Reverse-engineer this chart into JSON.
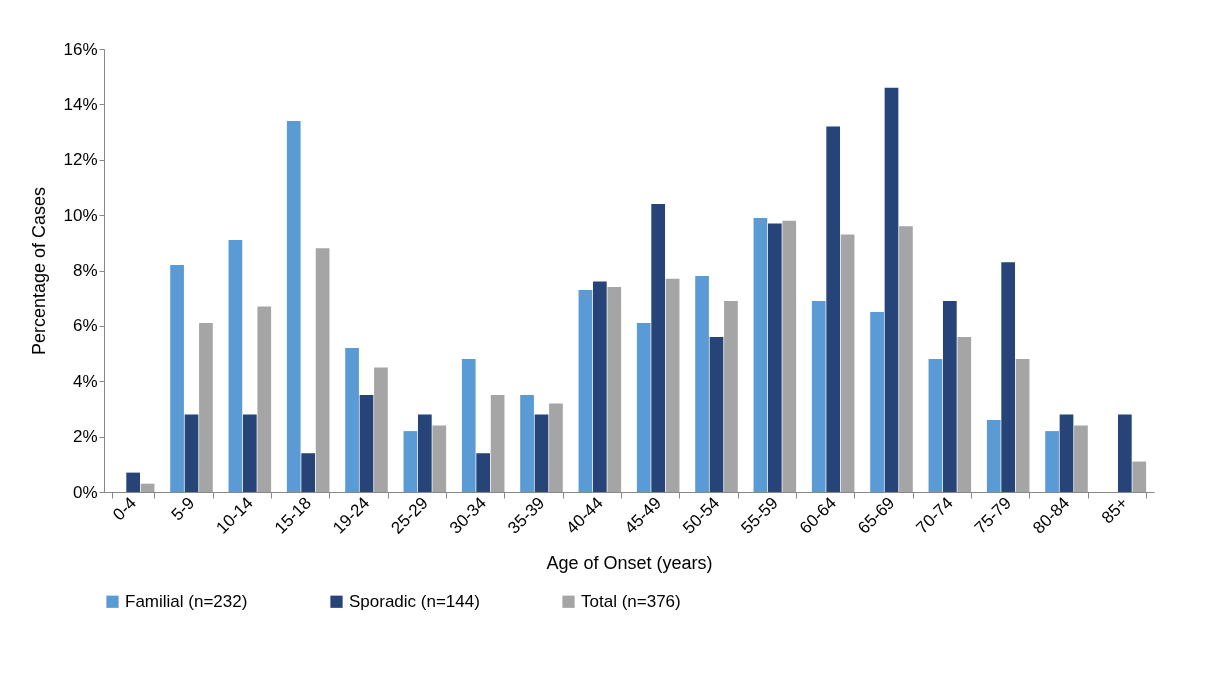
{
  "chart_data": {
    "type": "bar",
    "xlabel": "Age of Onset (years)",
    "ylabel": "Percentage of Cases",
    "categories": [
      "0-4",
      "5-9",
      "10-14",
      "15-18",
      "19-24",
      "25-29",
      "30-34",
      "35-39",
      "40-44",
      "45-49",
      "50-54",
      "55-59",
      "60-64",
      "65-69",
      "70-74",
      "75-79",
      "80-84",
      "85+"
    ],
    "series": [
      {
        "name": "Familial (n=232)",
        "color": "#5b9bd5",
        "values": [
          0,
          8.2,
          9.1,
          13.4,
          5.2,
          2.2,
          4.8,
          3.5,
          7.3,
          6.1,
          7.8,
          9.9,
          6.9,
          6.5,
          4.8,
          2.6,
          2.2,
          0
        ]
      },
      {
        "name": "Sporadic (n=144)",
        "color": "#264478",
        "values": [
          0.7,
          2.8,
          2.8,
          1.4,
          3.5,
          2.8,
          1.4,
          2.8,
          7.6,
          10.4,
          5.6,
          9.7,
          13.2,
          14.6,
          6.9,
          8.3,
          2.8,
          2.8
        ]
      },
      {
        "name": "Total (n=376)",
        "color": "#a5a5a5",
        "values": [
          0.3,
          6.1,
          6.7,
          8.8,
          4.5,
          2.4,
          3.5,
          3.2,
          7.4,
          7.7,
          6.9,
          9.8,
          9.3,
          9.6,
          5.6,
          4.8,
          2.4,
          1.1
        ]
      }
    ],
    "ylim": [
      0,
      16
    ],
    "yticks": [
      {
        "value": 0,
        "label": "0%"
      },
      {
        "value": 2,
        "label": "2%"
      },
      {
        "value": 4,
        "label": "4%"
      },
      {
        "value": 6,
        "label": "6%"
      },
      {
        "value": 8,
        "label": "8%"
      },
      {
        "value": 10,
        "label": "10%"
      },
      {
        "value": 12,
        "label": "12%"
      },
      {
        "value": 14,
        "label": "14%"
      },
      {
        "value": 16,
        "label": "16%"
      }
    ],
    "grid": false,
    "legend": "bottom"
  }
}
